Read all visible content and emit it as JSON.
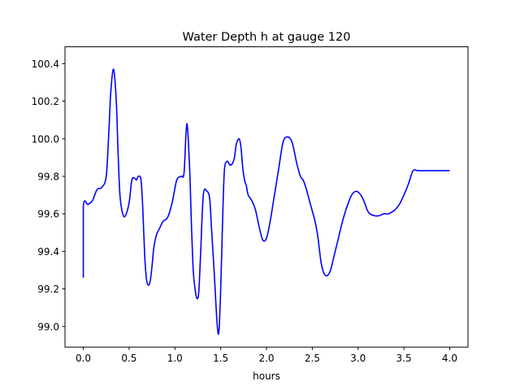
{
  "chart_data": {
    "type": "line",
    "title": "Water Depth h at gauge 120",
    "xlabel": "hours",
    "ylabel": "",
    "xlim": [
      -0.2,
      4.2
    ],
    "ylim": [
      98.89,
      100.49
    ],
    "xticks": [
      0.0,
      0.5,
      1.0,
      1.5,
      2.0,
      2.5,
      3.0,
      3.5,
      4.0
    ],
    "xtick_labels": [
      "0.0",
      "0.5",
      "1.0",
      "1.5",
      "2.0",
      "2.5",
      "3.0",
      "3.5",
      "4.0"
    ],
    "yticks": [
      99.0,
      99.2,
      99.4,
      99.6,
      99.8,
      100.0,
      100.2,
      100.4
    ],
    "ytick_labels": [
      "99.0",
      "99.2",
      "99.4",
      "99.6",
      "99.8",
      "100.0",
      "100.2",
      "100.4"
    ],
    "grid": false,
    "series": [
      {
        "color": "#0000ff",
        "x": [
          0.0,
          0.0,
          0.05,
          0.1,
          0.15,
          0.2,
          0.25,
          0.28,
          0.3,
          0.33,
          0.36,
          0.38,
          0.4,
          0.43,
          0.46,
          0.5,
          0.53,
          0.56,
          0.58,
          0.6,
          0.63,
          0.65,
          0.67,
          0.69,
          0.71,
          0.73,
          0.75,
          0.77,
          0.8,
          0.83,
          0.87,
          0.92,
          0.97,
          1.02,
          1.07,
          1.1,
          1.13,
          1.16,
          1.18,
          1.2,
          1.22,
          1.24,
          1.26,
          1.28,
          1.31,
          1.35,
          1.38,
          1.4,
          1.43,
          1.46,
          1.48,
          1.5,
          1.52,
          1.54,
          1.57,
          1.6,
          1.63,
          1.65,
          1.67,
          1.7,
          1.72,
          1.74,
          1.76,
          1.78,
          1.8,
          1.84,
          1.88,
          1.92,
          1.96,
          2.0,
          2.04,
          2.08,
          2.13,
          2.18,
          2.23,
          2.28,
          2.33,
          2.37,
          2.4,
          2.43,
          2.48,
          2.53,
          2.56,
          2.58,
          2.6,
          2.63,
          2.66,
          2.68,
          2.7,
          2.73,
          2.78,
          2.83,
          2.88,
          2.93,
          2.98,
          3.03,
          3.07,
          3.1,
          3.13,
          3.18,
          3.23,
          3.28,
          3.33,
          3.37,
          3.4,
          3.45,
          3.5,
          3.55,
          3.6,
          3.65,
          3.7,
          3.75,
          3.8,
          3.85,
          3.9,
          3.95,
          4.0
        ],
        "y": [
          99.26,
          99.64,
          99.65,
          99.67,
          99.73,
          99.74,
          99.8,
          100.05,
          100.25,
          100.37,
          100.2,
          99.92,
          99.7,
          99.6,
          99.59,
          99.66,
          99.78,
          99.79,
          99.78,
          99.8,
          99.78,
          99.62,
          99.38,
          99.25,
          99.22,
          99.24,
          99.32,
          99.42,
          99.49,
          99.52,
          99.56,
          99.58,
          99.66,
          99.78,
          99.8,
          99.82,
          100.08,
          99.85,
          99.55,
          99.3,
          99.2,
          99.15,
          99.18,
          99.38,
          99.7,
          99.72,
          99.68,
          99.52,
          99.28,
          99.02,
          98.97,
          99.2,
          99.55,
          99.83,
          99.88,
          99.86,
          99.87,
          99.9,
          99.97,
          100.0,
          99.96,
          99.85,
          99.78,
          99.75,
          99.7,
          99.67,
          99.62,
          99.53,
          99.46,
          99.47,
          99.56,
          99.68,
          99.83,
          99.98,
          100.01,
          99.98,
          99.87,
          99.8,
          99.78,
          99.74,
          99.65,
          99.56,
          99.48,
          99.4,
          99.33,
          99.28,
          99.27,
          99.28,
          99.3,
          99.36,
          99.46,
          99.56,
          99.64,
          99.7,
          99.72,
          99.7,
          99.66,
          99.62,
          99.6,
          99.59,
          99.59,
          99.6,
          99.6,
          99.61,
          99.62,
          99.65,
          99.7,
          99.76,
          99.83,
          99.83,
          99.83,
          99.83,
          99.83,
          99.83,
          99.83,
          99.83,
          99.83
        ]
      }
    ]
  }
}
